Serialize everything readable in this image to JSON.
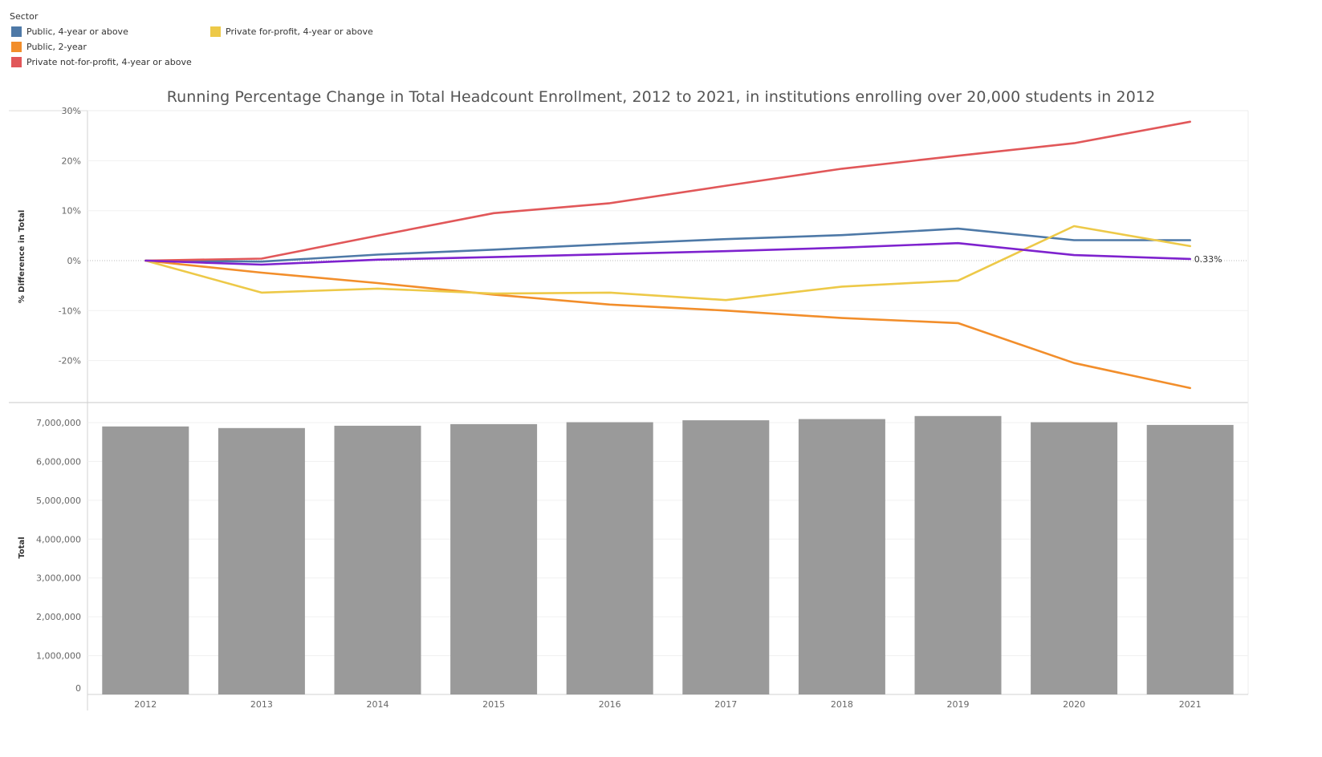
{
  "legend": {
    "title": "Sector",
    "items": [
      {
        "label": "Public, 4-year or above",
        "color": "#4e79a7"
      },
      {
        "label": "Public, 2-year",
        "color": "#f28e2b"
      },
      {
        "label": "Private not-for-profit, 4-year or above",
        "color": "#e15759"
      },
      {
        "label": "Private for-profit, 4-year or above",
        "color": "#edc948"
      }
    ]
  },
  "chart_data": [
    {
      "type": "line",
      "title": "Running Percentage Change in Total Headcount Enrollment, 2012 to 2021, in institutions enrolling over 20,000 students in 2012",
      "ylabel": "% Difference in Total",
      "ylim": [
        -25.5,
        30
      ],
      "yticks": [
        30,
        20,
        10,
        0,
        -10,
        -20
      ],
      "ytick_labels": [
        "30%",
        "20%",
        "10%",
        "0%",
        "-10%",
        "-20%"
      ],
      "x": [
        "2012",
        "2013",
        "2014",
        "2015",
        "2016",
        "2017",
        "2018",
        "2019",
        "2020",
        "2021"
      ],
      "grid": true,
      "series": [
        {
          "name": "Public, 4-year or above",
          "color": "#4e79a7",
          "values": [
            0,
            -0.2,
            1.2,
            2.2,
            3.3,
            4.3,
            5.1,
            6.4,
            4.1,
            4.1
          ]
        },
        {
          "name": "Public, 2-year",
          "color": "#f28e2b",
          "values": [
            0,
            -2.4,
            -4.5,
            -6.8,
            -8.8,
            -10.0,
            -11.5,
            -12.5,
            -20.5,
            -25.5
          ]
        },
        {
          "name": "Private not-for-profit, 4-year or above",
          "color": "#e15759",
          "values": [
            0,
            0.4,
            5.0,
            9.5,
            11.5,
            15.0,
            18.4,
            21.0,
            23.5,
            27.8
          ]
        },
        {
          "name": "Private for-profit, 4-year or above",
          "color": "#edc948",
          "values": [
            0,
            -6.4,
            -5.6,
            -6.6,
            -6.4,
            -7.9,
            -5.2,
            -4.0,
            6.9,
            2.9
          ]
        },
        {
          "color": "#7e22ce",
          "values": [
            0,
            -0.8,
            0.2,
            0.7,
            1.3,
            1.9,
            2.6,
            3.5,
            1.1,
            0.33
          ],
          "end_label": "0.33%"
        }
      ]
    },
    {
      "type": "bar",
      "ylabel": "Total",
      "ylim": [
        0,
        7200000
      ],
      "yticks": [
        7000000,
        6000000,
        5000000,
        4000000,
        3000000,
        2000000,
        1000000,
        0
      ],
      "ytick_labels": [
        "7,000,000",
        "6,000,000",
        "5,000,000",
        "4,000,000",
        "3,000,000",
        "2,000,000",
        "1,000,000",
        "0"
      ],
      "categories": [
        "2012",
        "2013",
        "2014",
        "2015",
        "2016",
        "2017",
        "2018",
        "2019",
        "2020",
        "2021"
      ],
      "values": [
        6900000,
        6860000,
        6920000,
        6960000,
        7010000,
        7060000,
        7090000,
        7170000,
        7010000,
        6940000
      ],
      "color": "#9a9a9a",
      "grid": true
    }
  ]
}
